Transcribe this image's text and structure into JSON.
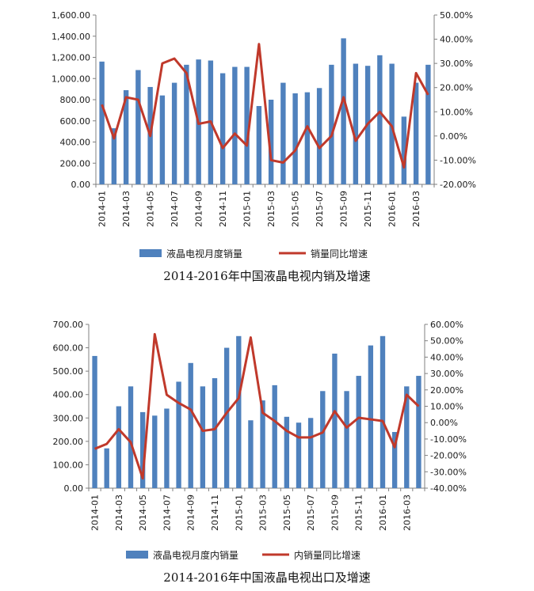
{
  "charts": [
    {
      "caption": "2014-2016年中国液晶电视内销及增速",
      "legend": {
        "bar_label": "液晶电视月度销量",
        "line_label": "销量同比增速"
      }
    },
    {
      "caption": "2014-2016年中国液晶电视出口及增速",
      "legend": {
        "bar_label": "液晶电视月度内销量",
        "line_label": "内销量同比增速"
      }
    }
  ],
  "colors": {
    "bar": "#4F81BD",
    "line": "#C0392B",
    "axis": "#808080"
  },
  "chart_data": [
    {
      "type": "bar+line",
      "months": [
        "2014-01",
        "2014-02",
        "2014-03",
        "2014-04",
        "2014-05",
        "2014-06",
        "2014-07",
        "2014-08",
        "2014-09",
        "2014-10",
        "2014-11",
        "2014-12",
        "2015-01",
        "2015-02",
        "2015-03",
        "2015-04",
        "2015-05",
        "2015-06",
        "2015-07",
        "2015-08",
        "2015-09",
        "2015-10",
        "2015-11",
        "2015-12",
        "2016-01",
        "2016-02",
        "2016-03",
        "2016-04"
      ],
      "x_tick_labels": [
        "2014-01",
        "2014-03",
        "2014-05",
        "2014-07",
        "2014-09",
        "2014-11",
        "2015-01",
        "2015-03",
        "2015-05",
        "2015-07",
        "2015-09",
        "2015-11",
        "2016-01",
        "2016-03"
      ],
      "series": [
        {
          "name": "液晶电视月度销量",
          "type": "bar",
          "axis": "left",
          "values": [
            1160,
            530,
            890,
            1080,
            920,
            840,
            960,
            1130,
            1180,
            1170,
            1050,
            1110,
            1110,
            740,
            800,
            960,
            860,
            870,
            910,
            1130,
            1380,
            1140,
            1120,
            1220,
            1140,
            640,
            960,
            1130
          ]
        },
        {
          "name": "销量同比增速",
          "type": "line",
          "axis": "right",
          "values": [
            0.13,
            -0.01,
            0.16,
            0.15,
            0.0,
            0.3,
            0.32,
            0.26,
            0.05,
            0.06,
            -0.05,
            0.01,
            -0.04,
            0.38,
            -0.1,
            -0.11,
            -0.06,
            0.04,
            -0.05,
            0.0,
            0.16,
            -0.02,
            0.05,
            0.1,
            0.04,
            -0.13,
            0.26,
            0.17
          ]
        }
      ],
      "left_axis": {
        "min": 0,
        "max": 1600,
        "step": 200,
        "tick_labels": [
          "0.00",
          "200.00",
          "400.00",
          "600.00",
          "800.00",
          "1,000.00",
          "1,200.00",
          "1,400.00",
          "1,600.00"
        ]
      },
      "right_axis": {
        "min": -0.2,
        "max": 0.5,
        "step": 0.1,
        "tick_labels": [
          "-20.00%",
          "-10.00%",
          "0.00%",
          "10.00%",
          "20.00%",
          "30.00%",
          "40.00%",
          "50.00%"
        ]
      },
      "grid": false,
      "legend_position": "bottom"
    },
    {
      "type": "bar+line",
      "months": [
        "2014-01",
        "2014-02",
        "2014-03",
        "2014-04",
        "2014-05",
        "2014-06",
        "2014-07",
        "2014-08",
        "2014-09",
        "2014-10",
        "2014-11",
        "2014-12",
        "2015-01",
        "2015-02",
        "2015-03",
        "2015-04",
        "2015-05",
        "2015-06",
        "2015-07",
        "2015-08",
        "2015-09",
        "2015-10",
        "2015-11",
        "2015-12",
        "2016-01",
        "2016-02",
        "2016-03",
        "2016-04"
      ],
      "x_tick_labels": [
        "2014-01",
        "2014-03",
        "2014-05",
        "2014-07",
        "2014-09",
        "2014-11",
        "2015-01",
        "2015-03",
        "2015-05",
        "2015-07",
        "2015-09",
        "2015-11",
        "2016-01",
        "2016-03"
      ],
      "series": [
        {
          "name": "液晶电视月度内销量",
          "type": "bar",
          "axis": "left",
          "values": [
            565,
            170,
            350,
            435,
            325,
            310,
            340,
            455,
            535,
            435,
            470,
            600,
            650,
            290,
            375,
            440,
            305,
            280,
            300,
            415,
            575,
            415,
            480,
            610,
            650,
            240,
            435,
            480
          ]
        },
        {
          "name": "内销量同比增速",
          "type": "line",
          "axis": "right",
          "values": [
            -0.16,
            -0.13,
            -0.04,
            -0.12,
            -0.34,
            0.54,
            0.17,
            0.12,
            0.08,
            -0.05,
            -0.04,
            0.06,
            0.15,
            0.52,
            0.06,
            0.01,
            -0.05,
            -0.09,
            -0.09,
            -0.06,
            0.07,
            -0.03,
            0.03,
            0.02,
            0.01,
            -0.15,
            0.17,
            0.1
          ]
        }
      ],
      "left_axis": {
        "min": 0,
        "max": 700,
        "step": 100,
        "tick_labels": [
          "0.00",
          "100.00",
          "200.00",
          "300.00",
          "400.00",
          "500.00",
          "600.00",
          "700.00"
        ]
      },
      "right_axis": {
        "min": -0.4,
        "max": 0.6,
        "step": 0.1,
        "tick_labels": [
          "-40.00%",
          "-30.00%",
          "-20.00%",
          "-10.00%",
          "0.00%",
          "10.00%",
          "20.00%",
          "30.00%",
          "40.00%",
          "50.00%",
          "60.00%"
        ]
      },
      "grid": false,
      "legend_position": "bottom"
    }
  ]
}
